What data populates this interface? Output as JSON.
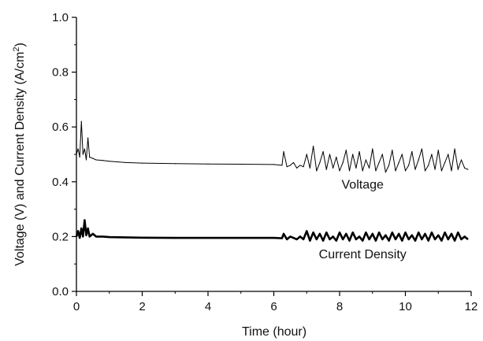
{
  "chart_data": {
    "type": "line",
    "title": "",
    "xlabel": "Time (hour)",
    "ylabel_parts": [
      "Voltage (V) and Current Density (A/cm",
      "2",
      ")"
    ],
    "xlim": [
      0,
      12
    ],
    "ylim": [
      0.0,
      1.0
    ],
    "x_ticks": [
      "0",
      "2",
      "4",
      "6",
      "8",
      "10",
      "12"
    ],
    "y_ticks": [
      "0.0",
      "0.2",
      "0.4",
      "0.6",
      "0.8",
      "1.0"
    ],
    "grid": false,
    "legend": "none",
    "annotations": [
      {
        "text": "Voltage",
        "x": 8.7,
        "y": 0.375
      },
      {
        "text": "Current Density",
        "x": 8.7,
        "y": 0.12
      }
    ],
    "series": [
      {
        "name": "Voltage",
        "color": "#000000",
        "x": [
          0.0,
          0.05,
          0.1,
          0.15,
          0.2,
          0.25,
          0.3,
          0.35,
          0.4,
          0.5,
          0.6,
          0.8,
          1.0,
          1.5,
          2.0,
          3.0,
          4.0,
          5.0,
          6.0,
          6.25,
          6.3,
          6.4,
          6.5,
          6.6,
          6.7,
          6.8,
          6.9,
          7.0,
          7.1,
          7.2,
          7.3,
          7.4,
          7.5,
          7.6,
          7.7,
          7.8,
          7.9,
          8.0,
          8.1,
          8.2,
          8.3,
          8.4,
          8.5,
          8.6,
          8.7,
          8.8,
          8.9,
          9.0,
          9.1,
          9.2,
          9.3,
          9.4,
          9.5,
          9.6,
          9.7,
          9.8,
          9.9,
          10.0,
          10.1,
          10.2,
          10.3,
          10.4,
          10.5,
          10.6,
          10.7,
          10.8,
          10.9,
          11.0,
          11.1,
          11.2,
          11.3,
          11.4,
          11.5,
          11.6,
          11.7,
          11.8,
          11.9
        ],
        "values": [
          0.5,
          0.52,
          0.49,
          0.62,
          0.5,
          0.52,
          0.48,
          0.56,
          0.49,
          0.485,
          0.48,
          0.478,
          0.475,
          0.47,
          0.468,
          0.466,
          0.465,
          0.464,
          0.463,
          0.46,
          0.51,
          0.455,
          0.46,
          0.47,
          0.45,
          0.46,
          0.455,
          0.5,
          0.45,
          0.53,
          0.44,
          0.47,
          0.51,
          0.445,
          0.5,
          0.45,
          0.49,
          0.44,
          0.47,
          0.515,
          0.44,
          0.5,
          0.45,
          0.51,
          0.44,
          0.48,
          0.45,
          0.52,
          0.44,
          0.47,
          0.5,
          0.435,
          0.46,
          0.515,
          0.44,
          0.47,
          0.5,
          0.44,
          0.46,
          0.51,
          0.445,
          0.48,
          0.52,
          0.44,
          0.46,
          0.5,
          0.445,
          0.515,
          0.44,
          0.47,
          0.5,
          0.44,
          0.52,
          0.445,
          0.48,
          0.45,
          0.445
        ]
      },
      {
        "name": "Current Density",
        "color": "#000000",
        "x": [
          0.0,
          0.05,
          0.1,
          0.15,
          0.2,
          0.25,
          0.3,
          0.35,
          0.4,
          0.5,
          0.6,
          0.8,
          1.0,
          1.5,
          2.0,
          3.0,
          4.0,
          5.0,
          6.0,
          6.25,
          6.3,
          6.4,
          6.5,
          6.6,
          6.7,
          6.8,
          6.9,
          7.0,
          7.1,
          7.2,
          7.3,
          7.4,
          7.5,
          7.6,
          7.7,
          7.8,
          7.9,
          8.0,
          8.1,
          8.2,
          8.3,
          8.4,
          8.5,
          8.6,
          8.7,
          8.8,
          8.9,
          9.0,
          9.1,
          9.2,
          9.3,
          9.4,
          9.5,
          9.6,
          9.7,
          9.8,
          9.9,
          10.0,
          10.1,
          10.2,
          10.3,
          10.4,
          10.5,
          10.6,
          10.7,
          10.8,
          10.9,
          11.0,
          11.1,
          11.2,
          11.3,
          11.4,
          11.5,
          11.6,
          11.7,
          11.8,
          11.9
        ],
        "values": [
          0.2,
          0.22,
          0.195,
          0.23,
          0.2,
          0.26,
          0.205,
          0.23,
          0.2,
          0.21,
          0.2,
          0.2,
          0.198,
          0.197,
          0.196,
          0.195,
          0.195,
          0.195,
          0.195,
          0.194,
          0.21,
          0.19,
          0.2,
          0.195,
          0.19,
          0.2,
          0.19,
          0.22,
          0.185,
          0.215,
          0.19,
          0.21,
          0.185,
          0.215,
          0.19,
          0.2,
          0.185,
          0.215,
          0.19,
          0.21,
          0.185,
          0.215,
          0.19,
          0.2,
          0.185,
          0.215,
          0.19,
          0.21,
          0.185,
          0.215,
          0.19,
          0.205,
          0.185,
          0.215,
          0.19,
          0.21,
          0.185,
          0.215,
          0.19,
          0.205,
          0.185,
          0.215,
          0.19,
          0.21,
          0.185,
          0.215,
          0.19,
          0.205,
          0.185,
          0.215,
          0.19,
          0.21,
          0.185,
          0.215,
          0.19,
          0.2,
          0.19
        ]
      }
    ]
  }
}
